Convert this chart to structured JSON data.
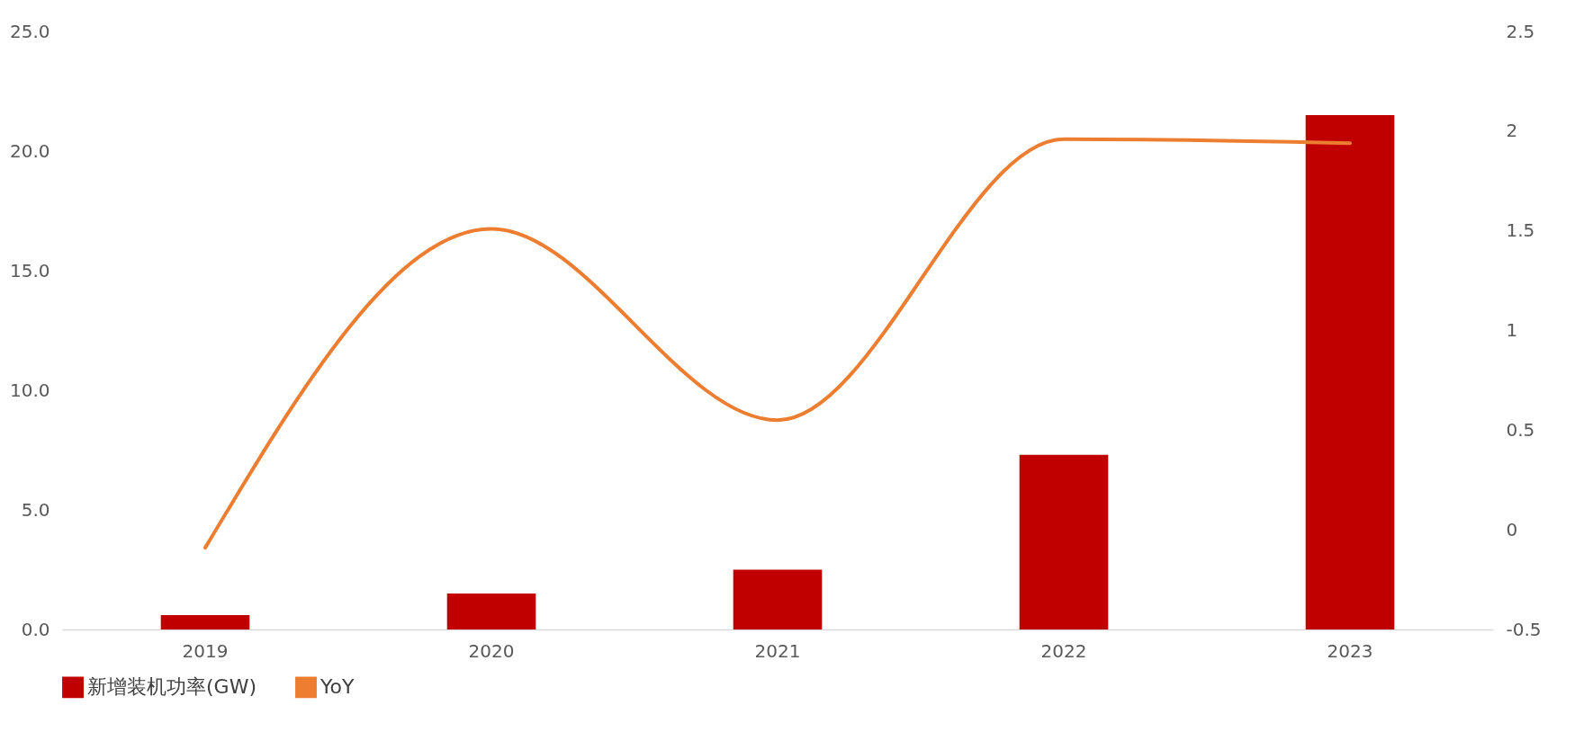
{
  "chart_data": {
    "type": "bar",
    "categories": [
      "2019",
      "2020",
      "2021",
      "2022",
      "2023"
    ],
    "series": [
      {
        "name": "新增装机功率(GW)",
        "color": "#c00000",
        "values": [
          0.6,
          1.5,
          2.5,
          7.3,
          21.5
        ]
      },
      {
        "name": "YoY",
        "type": "line",
        "axis": "y2",
        "color": "#ed7d31",
        "values": [
          -0.09,
          1.51,
          0.55,
          1.96,
          1.94
        ]
      }
    ],
    "ylim": [
      0,
      25
    ],
    "yticks": [
      {
        "value": 0,
        "label": "0.0"
      },
      {
        "value": 5,
        "label": "5.0"
      },
      {
        "value": 10,
        "label": "10.0"
      },
      {
        "value": 15,
        "label": "15.0"
      },
      {
        "value": 20,
        "label": "20.0"
      },
      {
        "value": 25,
        "label": "25.0"
      }
    ],
    "y2lim": [
      -0.5,
      2.5
    ],
    "y2ticks": [
      -0.5,
      0,
      0.5,
      1,
      1.5,
      2,
      2.5
    ],
    "grid": false,
    "legend": "bottom"
  }
}
